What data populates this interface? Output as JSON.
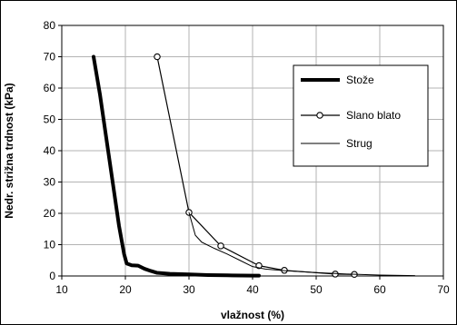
{
  "chart_data": {
    "type": "line",
    "title": "",
    "xlabel": "vlažnost (%)",
    "ylabel": "Nedr. strižna trdnost (kPa)",
    "xlim": [
      10,
      70
    ],
    "ylim": [
      0,
      80
    ],
    "xticks": [
      10,
      20,
      30,
      40,
      50,
      60,
      70
    ],
    "yticks": [
      0,
      10,
      20,
      30,
      40,
      50,
      60,
      70,
      80
    ],
    "grid": true,
    "legend_position": "upper-right",
    "series": [
      {
        "name": "Stože",
        "style": "thick-line",
        "color": "#000000",
        "points": [
          [
            15,
            70
          ],
          [
            16,
            58
          ],
          [
            17,
            44
          ],
          [
            18,
            30
          ],
          [
            19,
            16
          ],
          [
            19.8,
            7
          ],
          [
            20.2,
            4
          ],
          [
            21,
            3.4
          ],
          [
            22,
            3.3
          ],
          [
            23,
            2.3
          ],
          [
            24,
            1.6
          ],
          [
            25,
            1.0
          ],
          [
            27,
            0.7
          ],
          [
            30,
            0.5
          ],
          [
            33,
            0.3
          ],
          [
            36,
            0.2
          ],
          [
            40,
            0.1
          ],
          [
            41,
            0.1
          ]
        ]
      },
      {
        "name": "Slano blato",
        "style": "line-with-circles",
        "color": "#000000",
        "points": [
          [
            25,
            70
          ],
          [
            30,
            20.3
          ],
          [
            35,
            9.6
          ],
          [
            41,
            3.3
          ],
          [
            45,
            1.8
          ],
          [
            53,
            0.6
          ],
          [
            56,
            0.5
          ]
        ]
      },
      {
        "name": "Strug",
        "style": "thin-line",
        "color": "#000000",
        "points": [
          [
            30,
            20.3
          ],
          [
            31,
            13
          ],
          [
            32,
            10.8
          ],
          [
            34,
            8.8
          ],
          [
            36,
            7.0
          ],
          [
            38,
            5.0
          ],
          [
            40,
            3.0
          ],
          [
            42,
            2.2
          ],
          [
            45,
            1.7
          ],
          [
            50,
            1.1
          ],
          [
            55,
            0.6
          ],
          [
            60,
            0.3
          ],
          [
            65.5,
            0.1
          ]
        ]
      }
    ]
  }
}
